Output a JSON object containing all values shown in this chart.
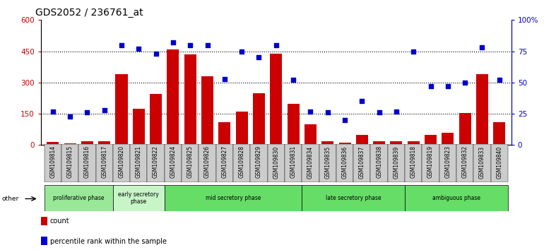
{
  "title": "GDS2052 / 236761_at",
  "samples": [
    "GSM109814",
    "GSM109815",
    "GSM109816",
    "GSM109817",
    "GSM109820",
    "GSM109821",
    "GSM109822",
    "GSM109824",
    "GSM109825",
    "GSM109826",
    "GSM109827",
    "GSM109828",
    "GSM109829",
    "GSM109830",
    "GSM109831",
    "GSM109834",
    "GSM109835",
    "GSM109836",
    "GSM109837",
    "GSM109838",
    "GSM109839",
    "GSM109818",
    "GSM109819",
    "GSM109823",
    "GSM109832",
    "GSM109833",
    "GSM109840"
  ],
  "counts": [
    15,
    8,
    18,
    18,
    340,
    175,
    245,
    460,
    435,
    330,
    108,
    160,
    250,
    440,
    198,
    98,
    18,
    12,
    48,
    18,
    18,
    18,
    48,
    58,
    155,
    340,
    108
  ],
  "percentiles": [
    27,
    23,
    26,
    28,
    80,
    77,
    73,
    82,
    80,
    80,
    53,
    75,
    70,
    80,
    52,
    27,
    26,
    20,
    35,
    26,
    27,
    75,
    47,
    47,
    50,
    78,
    52
  ],
  "bar_color": "#cc0000",
  "dot_color": "#0000cc",
  "phase_groups": [
    {
      "label": "proliferative phase",
      "start": 0,
      "end": 4,
      "color": "#98e898"
    },
    {
      "label": "early secretory\nphase",
      "start": 4,
      "end": 7,
      "color": "#c8f5c8"
    },
    {
      "label": "mid secretory phase",
      "start": 7,
      "end": 15,
      "color": "#66dd66"
    },
    {
      "label": "late secretory phase",
      "start": 15,
      "end": 21,
      "color": "#66dd66"
    },
    {
      "label": "ambiguous phase",
      "start": 21,
      "end": 27,
      "color": "#66dd66"
    }
  ],
  "ylim_left": [
    0,
    600
  ],
  "ylim_right": [
    0,
    100
  ],
  "yticks_left": [
    0,
    150,
    300,
    450,
    600
  ],
  "yticks_right": [
    0,
    25,
    50,
    75,
    100
  ],
  "ytick_labels_left": [
    "0",
    "150",
    "300",
    "450",
    "600"
  ],
  "ytick_labels_right": [
    "0",
    "25",
    "50",
    "75",
    "100%"
  ],
  "hlines": [
    150,
    300,
    450
  ],
  "bg_color": "#ffffff",
  "tick_bg": "#cccccc",
  "title_fontsize": 10
}
